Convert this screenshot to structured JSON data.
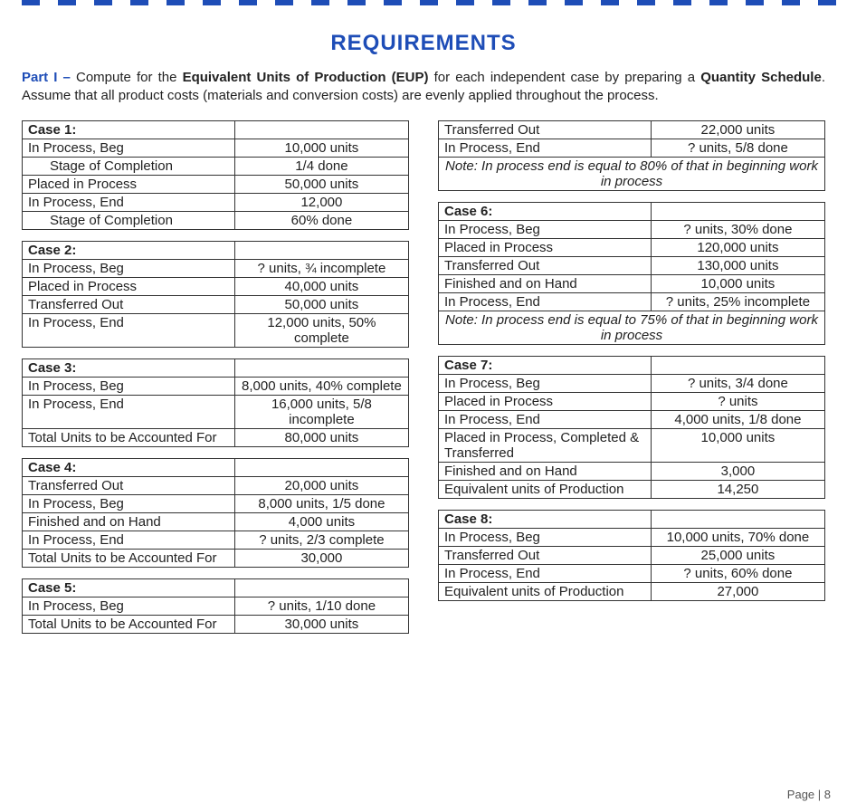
{
  "heading": "REQUIREMENTS",
  "intro": {
    "part": "Part I –",
    "line1a": " Compute for the ",
    "strong1": "Equivalent Units of Production (EUP)",
    "line1b": " for each independent case by preparing a ",
    "strong2": "Quantity Schedule",
    "line1c": ". Assume that all product costs (materials and conversion costs) are evenly applied throughout the process."
  },
  "case1": {
    "title": "Case 1:",
    "rows": [
      [
        "In Process, Beg",
        "10,000 units"
      ],
      [
        "__indent__Stage of Completion",
        "1/4 done"
      ],
      [
        "Placed in Process",
        "50,000 units"
      ],
      [
        "In Process, End",
        "12,000"
      ],
      [
        "__indent__Stage of Completion",
        "60% done"
      ]
    ]
  },
  "case2": {
    "title": "Case 2:",
    "rows": [
      [
        "In Process, Beg",
        "? units, ¾ incomplete"
      ],
      [
        "Placed in Process",
        "40,000 units"
      ],
      [
        "Transferred Out",
        "50,000 units"
      ],
      [
        "In Process, End",
        "12,000 units, 50% complete"
      ]
    ]
  },
  "case3": {
    "title": "Case 3:",
    "rows": [
      [
        "In Process, Beg",
        "8,000 units, 40% complete"
      ],
      [
        "In Process, End",
        "16,000 units, 5/8 incomplete"
      ],
      [
        "Total Units to be Accounted For",
        "80,000 units"
      ]
    ]
  },
  "case4": {
    "title": "Case 4:",
    "rows": [
      [
        "Transferred Out",
        "20,000 units"
      ],
      [
        "In Process, Beg",
        "8,000 units, 1/5 done"
      ],
      [
        "Finished and on Hand",
        "4,000 units"
      ],
      [
        "In Process, End",
        "? units, 2/3 complete"
      ],
      [
        "Total Units to be Accounted For",
        "30,000"
      ]
    ]
  },
  "case5": {
    "title": "Case 5:",
    "rows": [
      [
        "In Process, Beg",
        "? units, 1/10 done"
      ],
      [
        "Total Units to be Accounted For",
        "30,000 units"
      ]
    ]
  },
  "case5b": {
    "rows": [
      [
        "Transferred Out",
        "22,000 units"
      ],
      [
        "In Process, End",
        "? units, 5/8 done"
      ]
    ],
    "note": "Note: In process end is equal to 80% of that in beginning work in process"
  },
  "case6": {
    "title": "Case 6:",
    "rows": [
      [
        "In Process, Beg",
        "? units, 30% done"
      ],
      [
        "Placed in Process",
        "120,000 units"
      ],
      [
        "Transferred Out",
        "130,000 units"
      ],
      [
        "Finished and on Hand",
        "10,000 units"
      ],
      [
        "In Process, End",
        "? units, 25% incomplete"
      ]
    ],
    "note": "Note: In process end is equal to 75% of that in beginning work in process"
  },
  "case7": {
    "title": "Case 7:",
    "rows": [
      [
        "In Process, Beg",
        "? units, 3/4 done"
      ],
      [
        "Placed in Process",
        "? units"
      ],
      [
        "In Process, End",
        "4,000 units, 1/8 done"
      ],
      [
        "Placed in Process, Completed & Transferred",
        "10,000 units"
      ],
      [
        "Finished and on Hand",
        "3,000"
      ],
      [
        "Equivalent units of Production",
        "14,250"
      ]
    ]
  },
  "case8": {
    "title": "Case 8:",
    "rows": [
      [
        "In Process, Beg",
        "10,000 units, 70% done"
      ],
      [
        "Transferred Out",
        "25,000 units"
      ],
      [
        "In Process, End",
        "? units, 60% done"
      ],
      [
        "Equivalent units of Production",
        "27,000"
      ]
    ]
  },
  "pagenum": "Page | 8"
}
